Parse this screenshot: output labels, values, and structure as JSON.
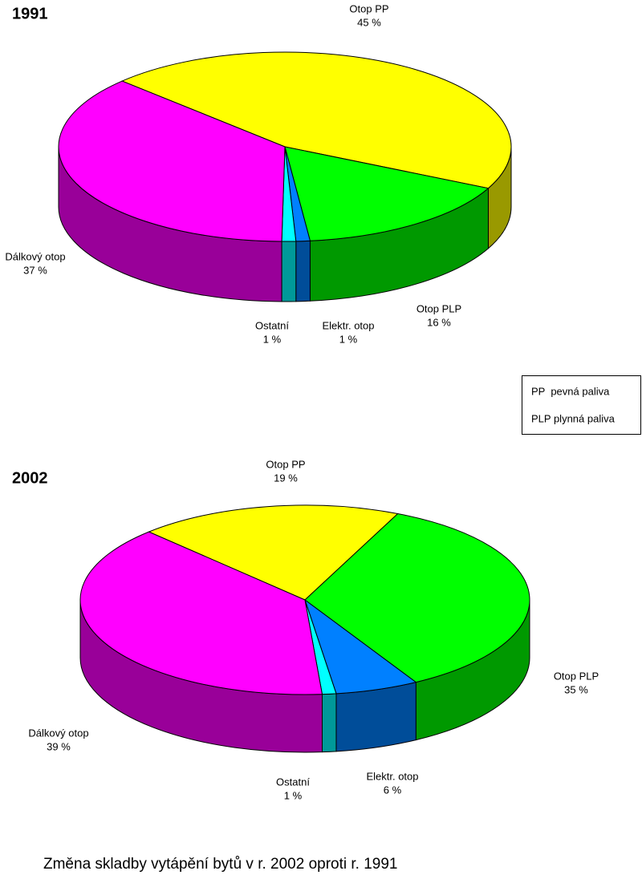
{
  "chart_data": [
    {
      "type": "pie",
      "title": "1991",
      "categories": [
        "Otop PP",
        "Otop PLP",
        "Elektr. otop",
        "Ostatní",
        "Dálkový otop"
      ],
      "values": [
        45,
        16,
        1,
        1,
        37
      ],
      "value_labels": [
        "45 %",
        "16 %",
        "1 %",
        "1 %",
        "37 %"
      ],
      "colors": [
        "#ffff00",
        "#00ff00",
        "#0080ff",
        "#00ffff",
        "#ff00ff"
      ]
    },
    {
      "type": "pie",
      "title": "2002",
      "categories": [
        "Otop PP",
        "Otop PLP",
        "Elektr. otop",
        "Ostatní",
        "Dálkový otop"
      ],
      "values": [
        19,
        35,
        6,
        1,
        39
      ],
      "value_labels": [
        "19 %",
        "35 %",
        "6 %",
        "1 %",
        "39 %"
      ],
      "colors": [
        "#ffff00",
        "#00ff00",
        "#0080ff",
        "#00ffff",
        "#ff00ff"
      ]
    }
  ],
  "legend_notes": [
    "PP  pevná paliva",
    "PLP plynná paliva"
  ],
  "caption": "Změna skladby vytápění bytů v r. 2002 oproti r. 1991"
}
